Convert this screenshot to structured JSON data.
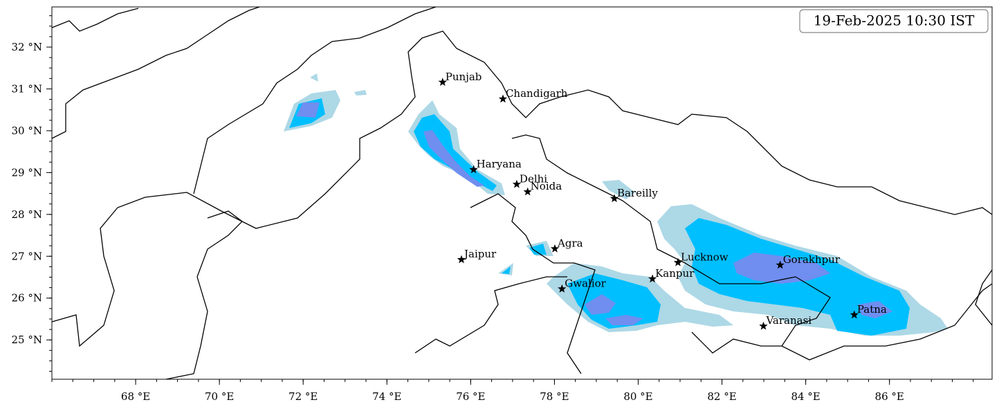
{
  "map": {
    "timestamp": "19-Feb-2025 10:30 IST",
    "xlim": [
      66,
      88.45
    ],
    "ylim": [
      24.06,
      32.96
    ],
    "xticks": [
      {
        "value": 68,
        "label": "68 °E"
      },
      {
        "value": 70,
        "label": "70 °E"
      },
      {
        "value": 72,
        "label": "72 °E"
      },
      {
        "value": 74,
        "label": "74 °E"
      },
      {
        "value": 76,
        "label": "76 °E"
      },
      {
        "value": 78,
        "label": "78 °E"
      },
      {
        "value": 80,
        "label": "80 °E"
      },
      {
        "value": 82,
        "label": "82 °E"
      },
      {
        "value": 84,
        "label": "84 °E"
      },
      {
        "value": 86,
        "label": "86 °E"
      }
    ],
    "yticks": [
      {
        "value": 25,
        "label": "25 °N"
      },
      {
        "value": 26,
        "label": "26 °N"
      },
      {
        "value": 27,
        "label": "27 °N"
      },
      {
        "value": 28,
        "label": "28 °N"
      },
      {
        "value": 29,
        "label": "29 °N"
      },
      {
        "value": 30,
        "label": "30 °N"
      },
      {
        "value": 31,
        "label": "31 °N"
      },
      {
        "value": 32,
        "label": "32 °N"
      }
    ],
    "cities": [
      {
        "name": "Punjab",
        "lon": 75.33,
        "lat": 31.16
      },
      {
        "name": "Chandigarh",
        "lon": 76.77,
        "lat": 30.76
      },
      {
        "name": "Haryana",
        "lon": 76.07,
        "lat": 29.07
      },
      {
        "name": "Delhi",
        "lon": 77.1,
        "lat": 28.72
      },
      {
        "name": "Noida",
        "lon": 77.36,
        "lat": 28.54
      },
      {
        "name": "Bareilly",
        "lon": 79.43,
        "lat": 28.38
      },
      {
        "name": "Agra",
        "lon": 78.01,
        "lat": 27.18
      },
      {
        "name": "Jaipur",
        "lon": 75.78,
        "lat": 26.92
      },
      {
        "name": "Lucknow",
        "lon": 80.95,
        "lat": 26.85
      },
      {
        "name": "Kanpur",
        "lon": 80.34,
        "lat": 26.46
      },
      {
        "name": "Gwalior",
        "lon": 78.18,
        "lat": 26.22
      },
      {
        "name": "Gorakhpur",
        "lon": 83.39,
        "lat": 26.79
      },
      {
        "name": "Patna",
        "lon": 85.16,
        "lat": 25.6
      },
      {
        "name": "Varanasi",
        "lon": 82.99,
        "lat": 25.33
      }
    ]
  }
}
